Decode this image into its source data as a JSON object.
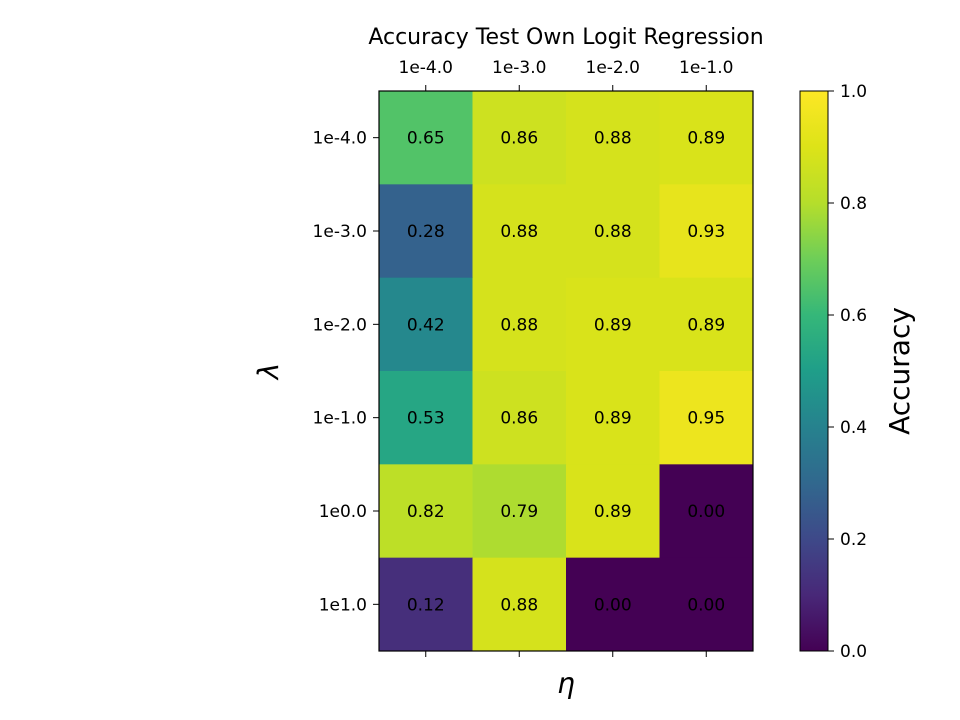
{
  "chart_data": {
    "type": "heatmap",
    "title": "Accuracy Test Own Logit Regression",
    "xlabel": "η",
    "ylabel": "λ",
    "x_categories": [
      "1e-4.0",
      "1e-3.0",
      "1e-2.0",
      "1e-1.0"
    ],
    "y_categories": [
      "1e-4.0",
      "1e-3.0",
      "1e-2.0",
      "1e-1.0",
      "1e0.0",
      "1e1.0"
    ],
    "values": [
      [
        0.65,
        0.86,
        0.88,
        0.89
      ],
      [
        0.28,
        0.88,
        0.88,
        0.93
      ],
      [
        0.42,
        0.88,
        0.89,
        0.89
      ],
      [
        0.53,
        0.86,
        0.89,
        0.95
      ],
      [
        0.82,
        0.79,
        0.89,
        0.0
      ],
      [
        0.12,
        0.88,
        0.0,
        0.0
      ]
    ],
    "colormap": "viridis",
    "colorbar": {
      "label": "Accuracy",
      "range": [
        0.0,
        1.0
      ],
      "ticks": [
        "0.0",
        "0.2",
        "0.4",
        "0.6",
        "0.8",
        "1.0"
      ]
    },
    "x_axis_position": "top",
    "grid": false
  }
}
